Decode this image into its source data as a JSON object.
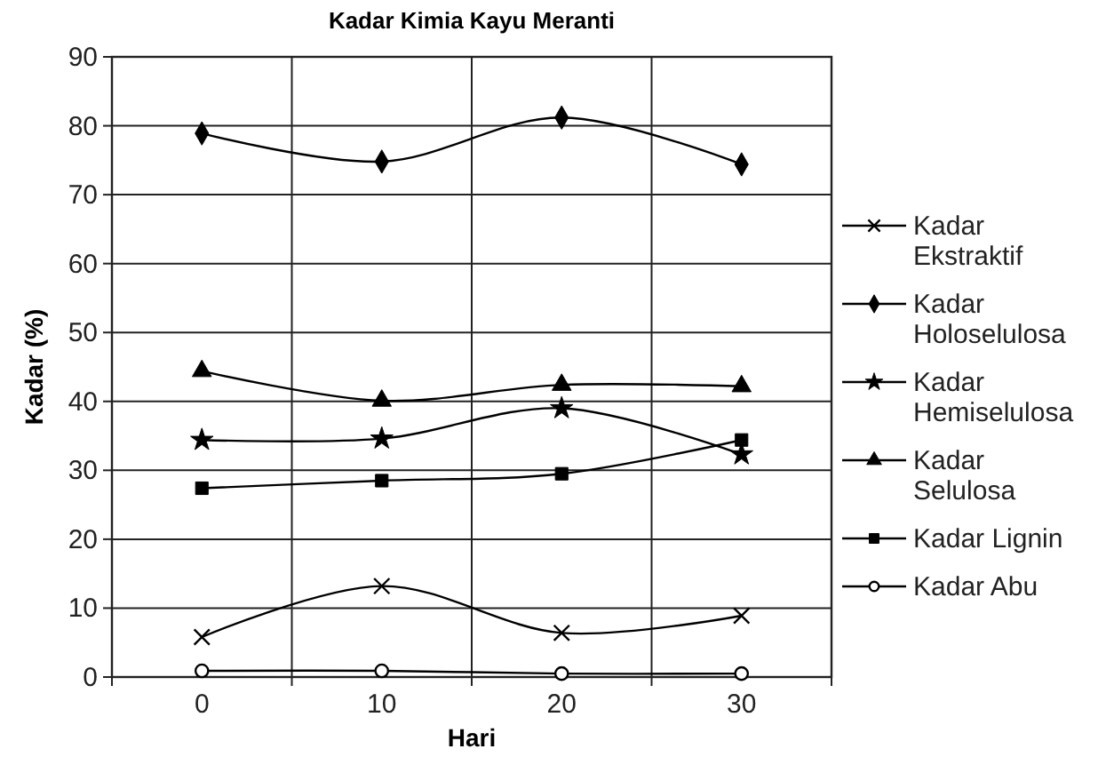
{
  "chart_data": {
    "type": "line",
    "title": "Kadar Kimia Kayu Meranti",
    "xlabel": "Hari",
    "ylabel": "Kadar (%)",
    "categories": [
      "0",
      "10",
      "20",
      "30"
    ],
    "series": [
      {
        "name": "Kadar Ekstraktif",
        "color": "#000000",
        "marker": "cross",
        "values": [
          5.8,
          13.2,
          6.4,
          8.9
        ]
      },
      {
        "name": "Kadar Holoselulosa",
        "color": "#000000",
        "marker": "diamond",
        "values": [
          78.9,
          74.8,
          81.2,
          74.4
        ]
      },
      {
        "name": "Kadar Hemiselulosa",
        "color": "#000000",
        "marker": "star",
        "values": [
          34.4,
          34.6,
          39.0,
          32.3
        ]
      },
      {
        "name": "Kadar Selulosa",
        "color": "#000000",
        "marker": "triangle",
        "values": [
          44.4,
          40.1,
          42.4,
          42.2
        ]
      },
      {
        "name": "Kadar Lignin",
        "color": "#000000",
        "marker": "square",
        "values": [
          27.4,
          28.5,
          29.5,
          34.4
        ]
      },
      {
        "name": "Kadar Abu",
        "color": "#000000",
        "marker": "circle",
        "values": [
          0.9,
          0.9,
          0.5,
          0.5
        ]
      }
    ],
    "ylim": [
      0,
      90
    ],
    "yticks": [
      0,
      10,
      20,
      30,
      40,
      50,
      60,
      70,
      80,
      90
    ],
    "grid": true,
    "legend": "right",
    "line_style": "solid"
  }
}
